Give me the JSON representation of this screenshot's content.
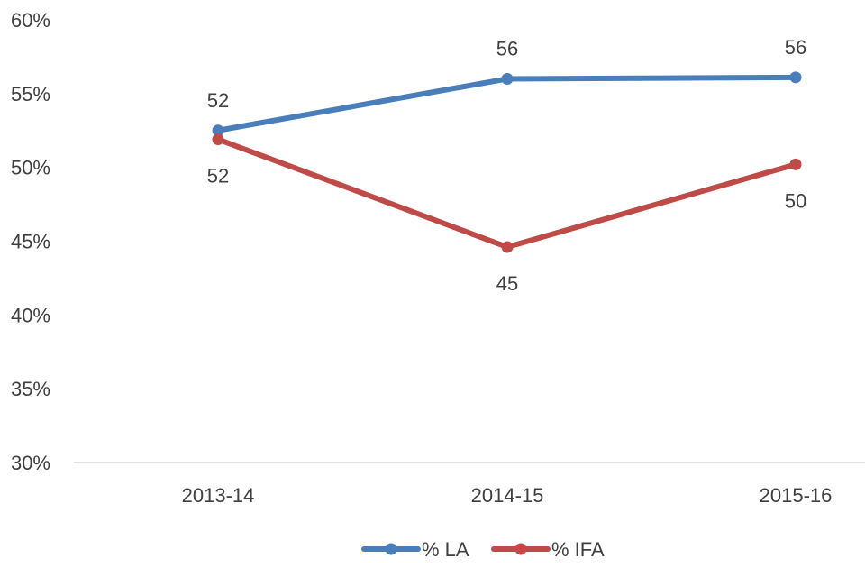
{
  "chart_data": {
    "type": "line",
    "categories": [
      "2013-14",
      "2014-15",
      "2015-16"
    ],
    "ylim": [
      30,
      60
    ],
    "y_ticks": [
      30,
      35,
      40,
      45,
      50,
      55,
      60
    ],
    "y_tick_labels": [
      "30%",
      "35%",
      "40%",
      "45%",
      "50%",
      "55%",
      "60%"
    ],
    "grid": false,
    "legend_position": "bottom",
    "series": [
      {
        "name": "% LA",
        "color": "#4a7ebb",
        "values": [
          52.5,
          56.0,
          56.1
        ],
        "labels": [
          "52",
          "56",
          "56"
        ],
        "label_side": [
          "above",
          "above",
          "above"
        ]
      },
      {
        "name": "% IFA",
        "color": "#be4b48",
        "values": [
          51.9,
          44.6,
          50.2
        ],
        "labels": [
          "52",
          "45",
          "50"
        ],
        "label_side": [
          "below",
          "below",
          "below"
        ]
      }
    ]
  }
}
